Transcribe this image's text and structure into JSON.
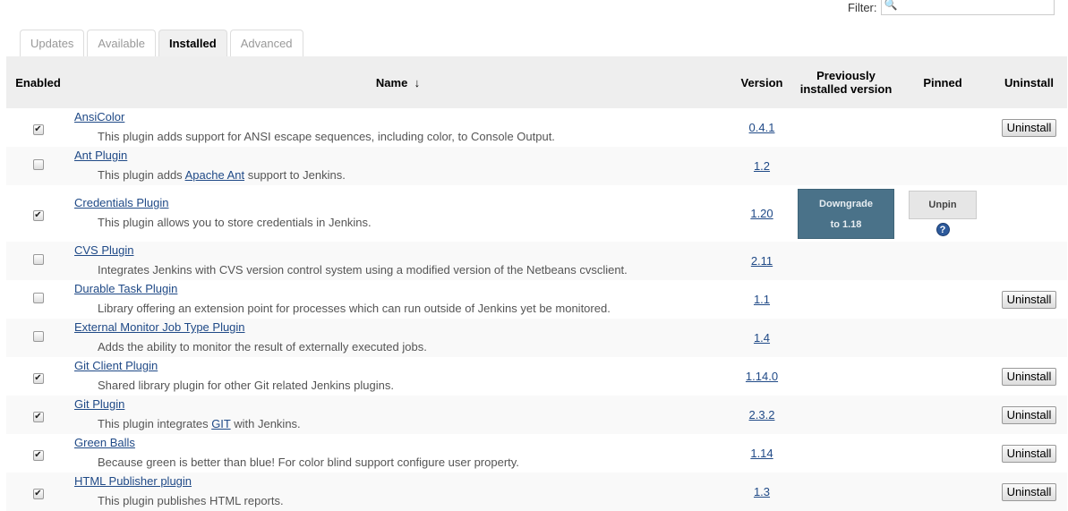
{
  "filter": {
    "label": "Filter:",
    "value": "",
    "icon": "search-icon"
  },
  "tabs": [
    {
      "label": "Updates"
    },
    {
      "label": "Available"
    },
    {
      "label": "Installed",
      "active": true
    },
    {
      "label": "Advanced"
    }
  ],
  "columns": {
    "enabled": "Enabled",
    "name": "Name",
    "sort_indicator": "↓",
    "version": "Version",
    "previous": "Previously installed version",
    "pinned": "Pinned",
    "uninstall": "Uninstall"
  },
  "plugins": [
    {
      "name": "AnsiColor",
      "desc": "This plugin adds support for ANSI escape sequences, including color, to Console Output.",
      "version": "0.4.1",
      "enabled": true,
      "uninstall": "Uninstall"
    },
    {
      "name": "Ant Plugin",
      "desc_pre": "This plugin adds ",
      "desc_link": "Apache Ant",
      "desc_post": " support to Jenkins.",
      "version": "1.2",
      "enabled": false
    },
    {
      "name": "Credentials Plugin",
      "desc": "This plugin allows you to store credentials in Jenkins.",
      "version": "1.20",
      "enabled": true,
      "downgrade": "Downgrade",
      "downgrade_to": "to 1.18",
      "unpin": "Unpin",
      "help": "?"
    },
    {
      "name": "CVS Plugin",
      "desc": "Integrates Jenkins with CVS version control system using a modified version of the Netbeans cvsclient.",
      "version": "2.11",
      "enabled": false
    },
    {
      "name": "Durable Task Plugin",
      "desc": "Library offering an extension point for processes which can run outside of Jenkins yet be monitored.",
      "version": "1.1",
      "enabled": false,
      "uninstall": "Uninstall"
    },
    {
      "name": "External Monitor Job Type Plugin",
      "desc": "Adds the ability to monitor the result of externally executed jobs.",
      "version": "1.4",
      "enabled": false
    },
    {
      "name": "Git Client Plugin",
      "desc": "Shared library plugin for other Git related Jenkins plugins.",
      "version": "1.14.0",
      "enabled": true,
      "uninstall": "Uninstall"
    },
    {
      "name": "Git Plugin",
      "desc_pre": "This plugin integrates ",
      "desc_link": "GIT",
      "desc_post": " with Jenkins.",
      "version": "2.3.2",
      "enabled": true,
      "uninstall": "Uninstall"
    },
    {
      "name": "Green Balls",
      "desc": "Because green is better than blue! For color blind support configure user property.",
      "version": "1.14",
      "enabled": true,
      "uninstall": "Uninstall"
    },
    {
      "name": "HTML Publisher plugin",
      "desc": "This plugin publishes HTML reports.",
      "version": "1.3",
      "enabled": true,
      "uninstall": "Uninstall"
    }
  ]
}
